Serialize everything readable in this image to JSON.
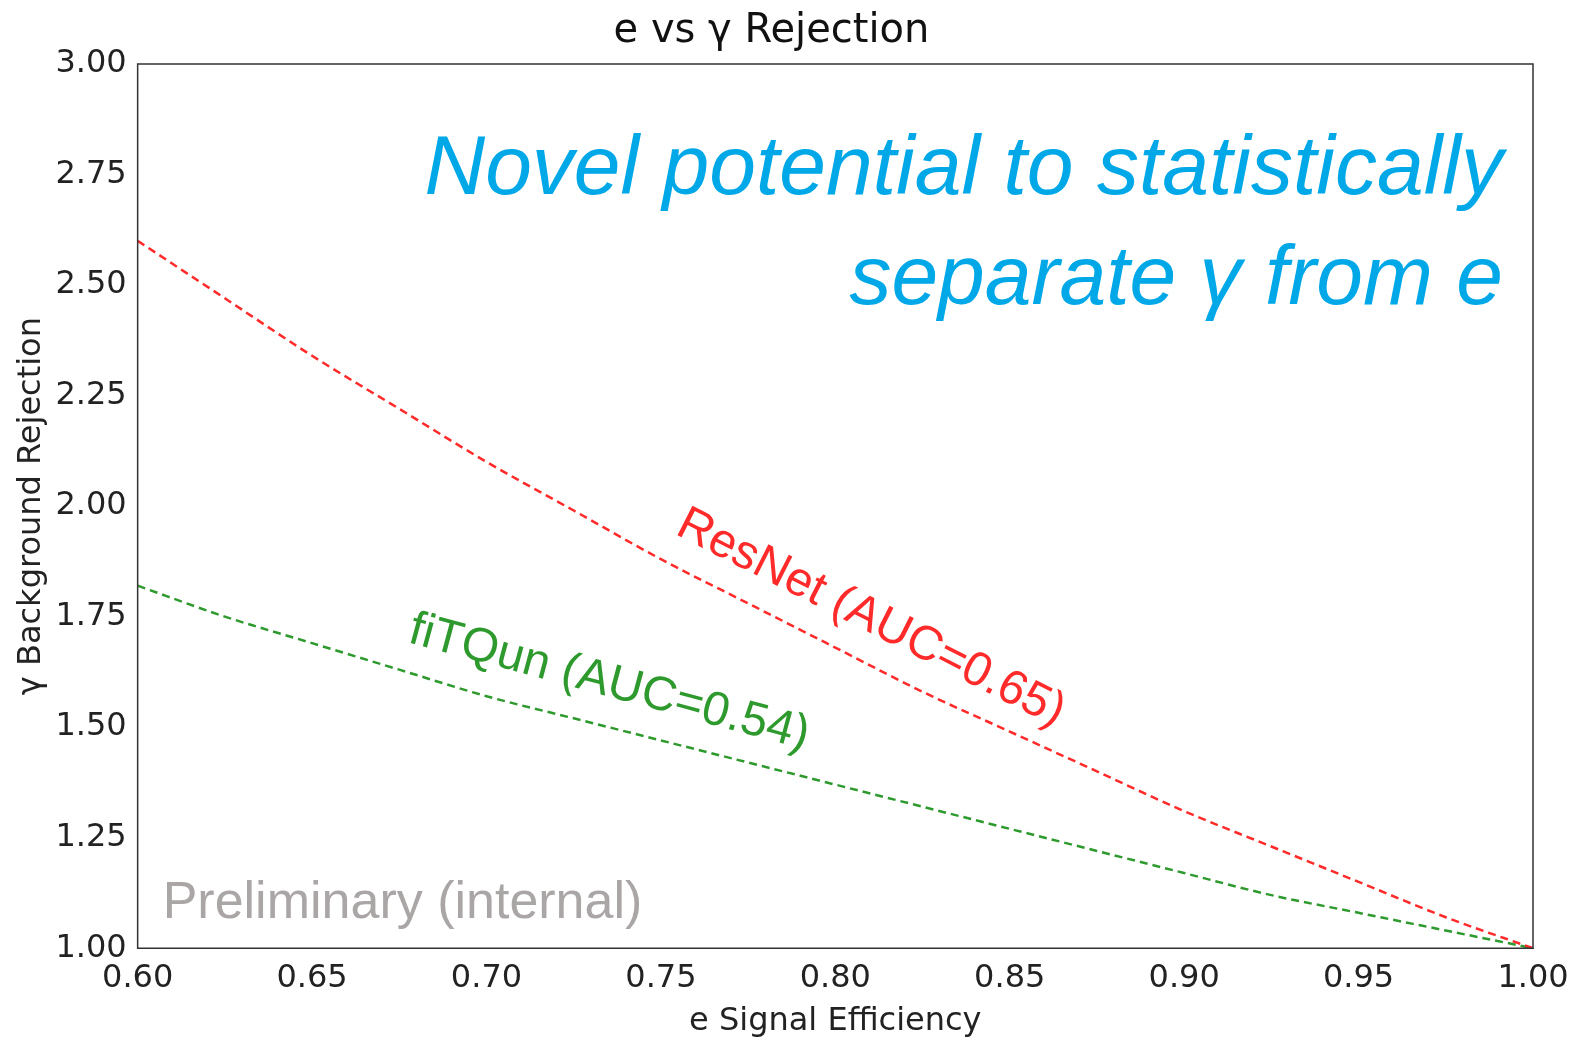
{
  "chart_data": {
    "type": "line",
    "title": "e vs γ Rejection",
    "xlabel": "e Signal Efficiency",
    "ylabel": "γ Background Rejection",
    "x": [
      0.6,
      0.625,
      0.65,
      0.675,
      0.7,
      0.725,
      0.75,
      0.775,
      0.8,
      0.825,
      0.85,
      0.875,
      0.9,
      0.925,
      0.95,
      0.975,
      1.0
    ],
    "series": [
      {
        "name": "ResNet (AUC=0.65)",
        "color": "#ff2a2a",
        "values": [
          2.6,
          2.47,
          2.34,
          2.22,
          2.1,
          1.99,
          1.88,
          1.78,
          1.68,
          1.58,
          1.49,
          1.4,
          1.31,
          1.23,
          1.15,
          1.07,
          1.0
        ]
      },
      {
        "name": "fiTQun (AUC=0.54)",
        "color": "#2e9a2e",
        "values": [
          1.82,
          1.75,
          1.69,
          1.63,
          1.57,
          1.52,
          1.47,
          1.42,
          1.37,
          1.32,
          1.27,
          1.22,
          1.17,
          1.12,
          1.08,
          1.04,
          1.0
        ]
      }
    ],
    "xlim": [
      0.6,
      1.0
    ],
    "xticks": [
      {
        "value": 0.6,
        "label": "0.60"
      },
      {
        "value": 0.65,
        "label": "0.65"
      },
      {
        "value": 0.7,
        "label": "0.70"
      },
      {
        "value": 0.75,
        "label": "0.75"
      },
      {
        "value": 0.8,
        "label": "0.80"
      },
      {
        "value": 0.85,
        "label": "0.85"
      },
      {
        "value": 0.9,
        "label": "0.90"
      },
      {
        "value": 0.95,
        "label": "0.95"
      },
      {
        "value": 1.0,
        "label": "1.00"
      }
    ],
    "ylim": [
      1.0,
      3.0
    ],
    "yticks": [
      {
        "value": 1.0,
        "label": "1.00"
      },
      {
        "value": 1.25,
        "label": "1.25"
      },
      {
        "value": 1.5,
        "label": "1.50"
      },
      {
        "value": 1.75,
        "label": "1.75"
      },
      {
        "value": 2.0,
        "label": "2.00"
      },
      {
        "value": 2.25,
        "label": "2.25"
      },
      {
        "value": 2.5,
        "label": "2.50"
      },
      {
        "value": 2.75,
        "label": "2.75"
      },
      {
        "value": 3.0,
        "label": "3.00"
      }
    ],
    "grid": false,
    "legend": false,
    "line_style": "dashed",
    "marker": "none",
    "annotations": [
      "Novel potential to statistically separate γ from e",
      "Preliminary (internal)"
    ]
  }
}
